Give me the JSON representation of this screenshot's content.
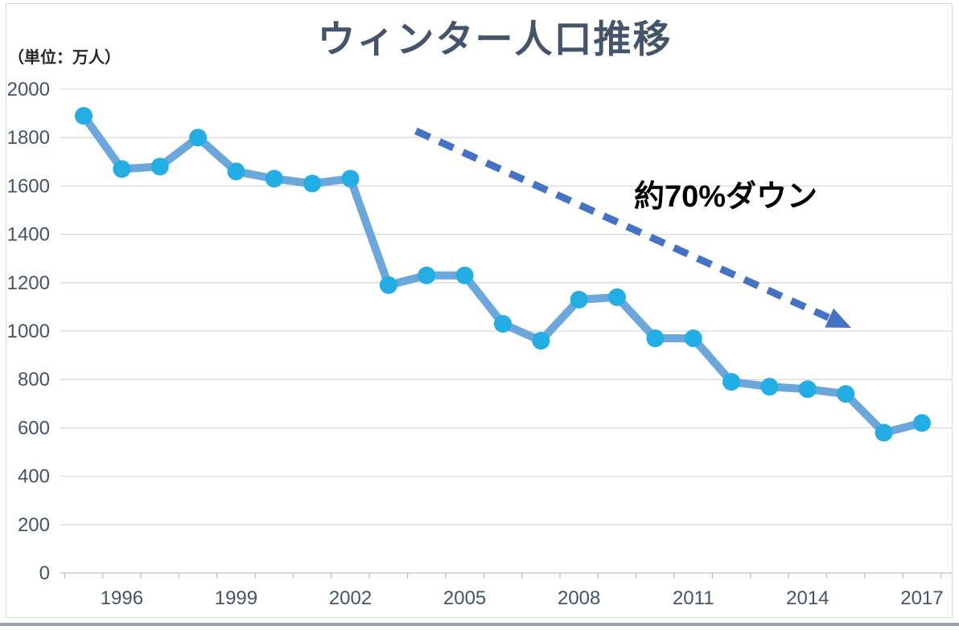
{
  "chart_data": {
    "type": "line",
    "title": "ウィンター人口推移",
    "unit_label": "（単位：万人）",
    "annotation_text": "約70%ダウン",
    "x": [
      1995,
      1996,
      1997,
      1998,
      1999,
      2000,
      2001,
      2002,
      2003,
      2004,
      2005,
      2006,
      2007,
      2008,
      2009,
      2010,
      2011,
      2012,
      2013,
      2014,
      2015,
      2016,
      2017
    ],
    "values": [
      1890,
      1670,
      1680,
      1800,
      1660,
      1630,
      1610,
      1630,
      1190,
      1230,
      1230,
      1030,
      960,
      1130,
      1140,
      970,
      970,
      790,
      770,
      760,
      740,
      580,
      620
    ],
    "x_tick_labels": [
      "1996",
      "1999",
      "2002",
      "2005",
      "2008",
      "2011",
      "2014",
      "2017"
    ],
    "y_tick_labels": [
      "0",
      "200",
      "400",
      "600",
      "800",
      "1000",
      "1200",
      "1400",
      "1600",
      "1800",
      "2000"
    ],
    "ylim": [
      0,
      2000
    ],
    "grid": "horizontal",
    "legend": "none"
  },
  "colors": {
    "title": "#44546A",
    "tick_label": "#44546A",
    "unit_label": "#262626",
    "annotation": "#000000",
    "gridline": "#D9D9D9",
    "axis": "#BFBFBF",
    "frame": "#D9D9D9",
    "line": "#6BA7DB",
    "marker": "#22AEE5",
    "arrow": "#4472C4",
    "bottom_bar": "#9AA1AB"
  }
}
